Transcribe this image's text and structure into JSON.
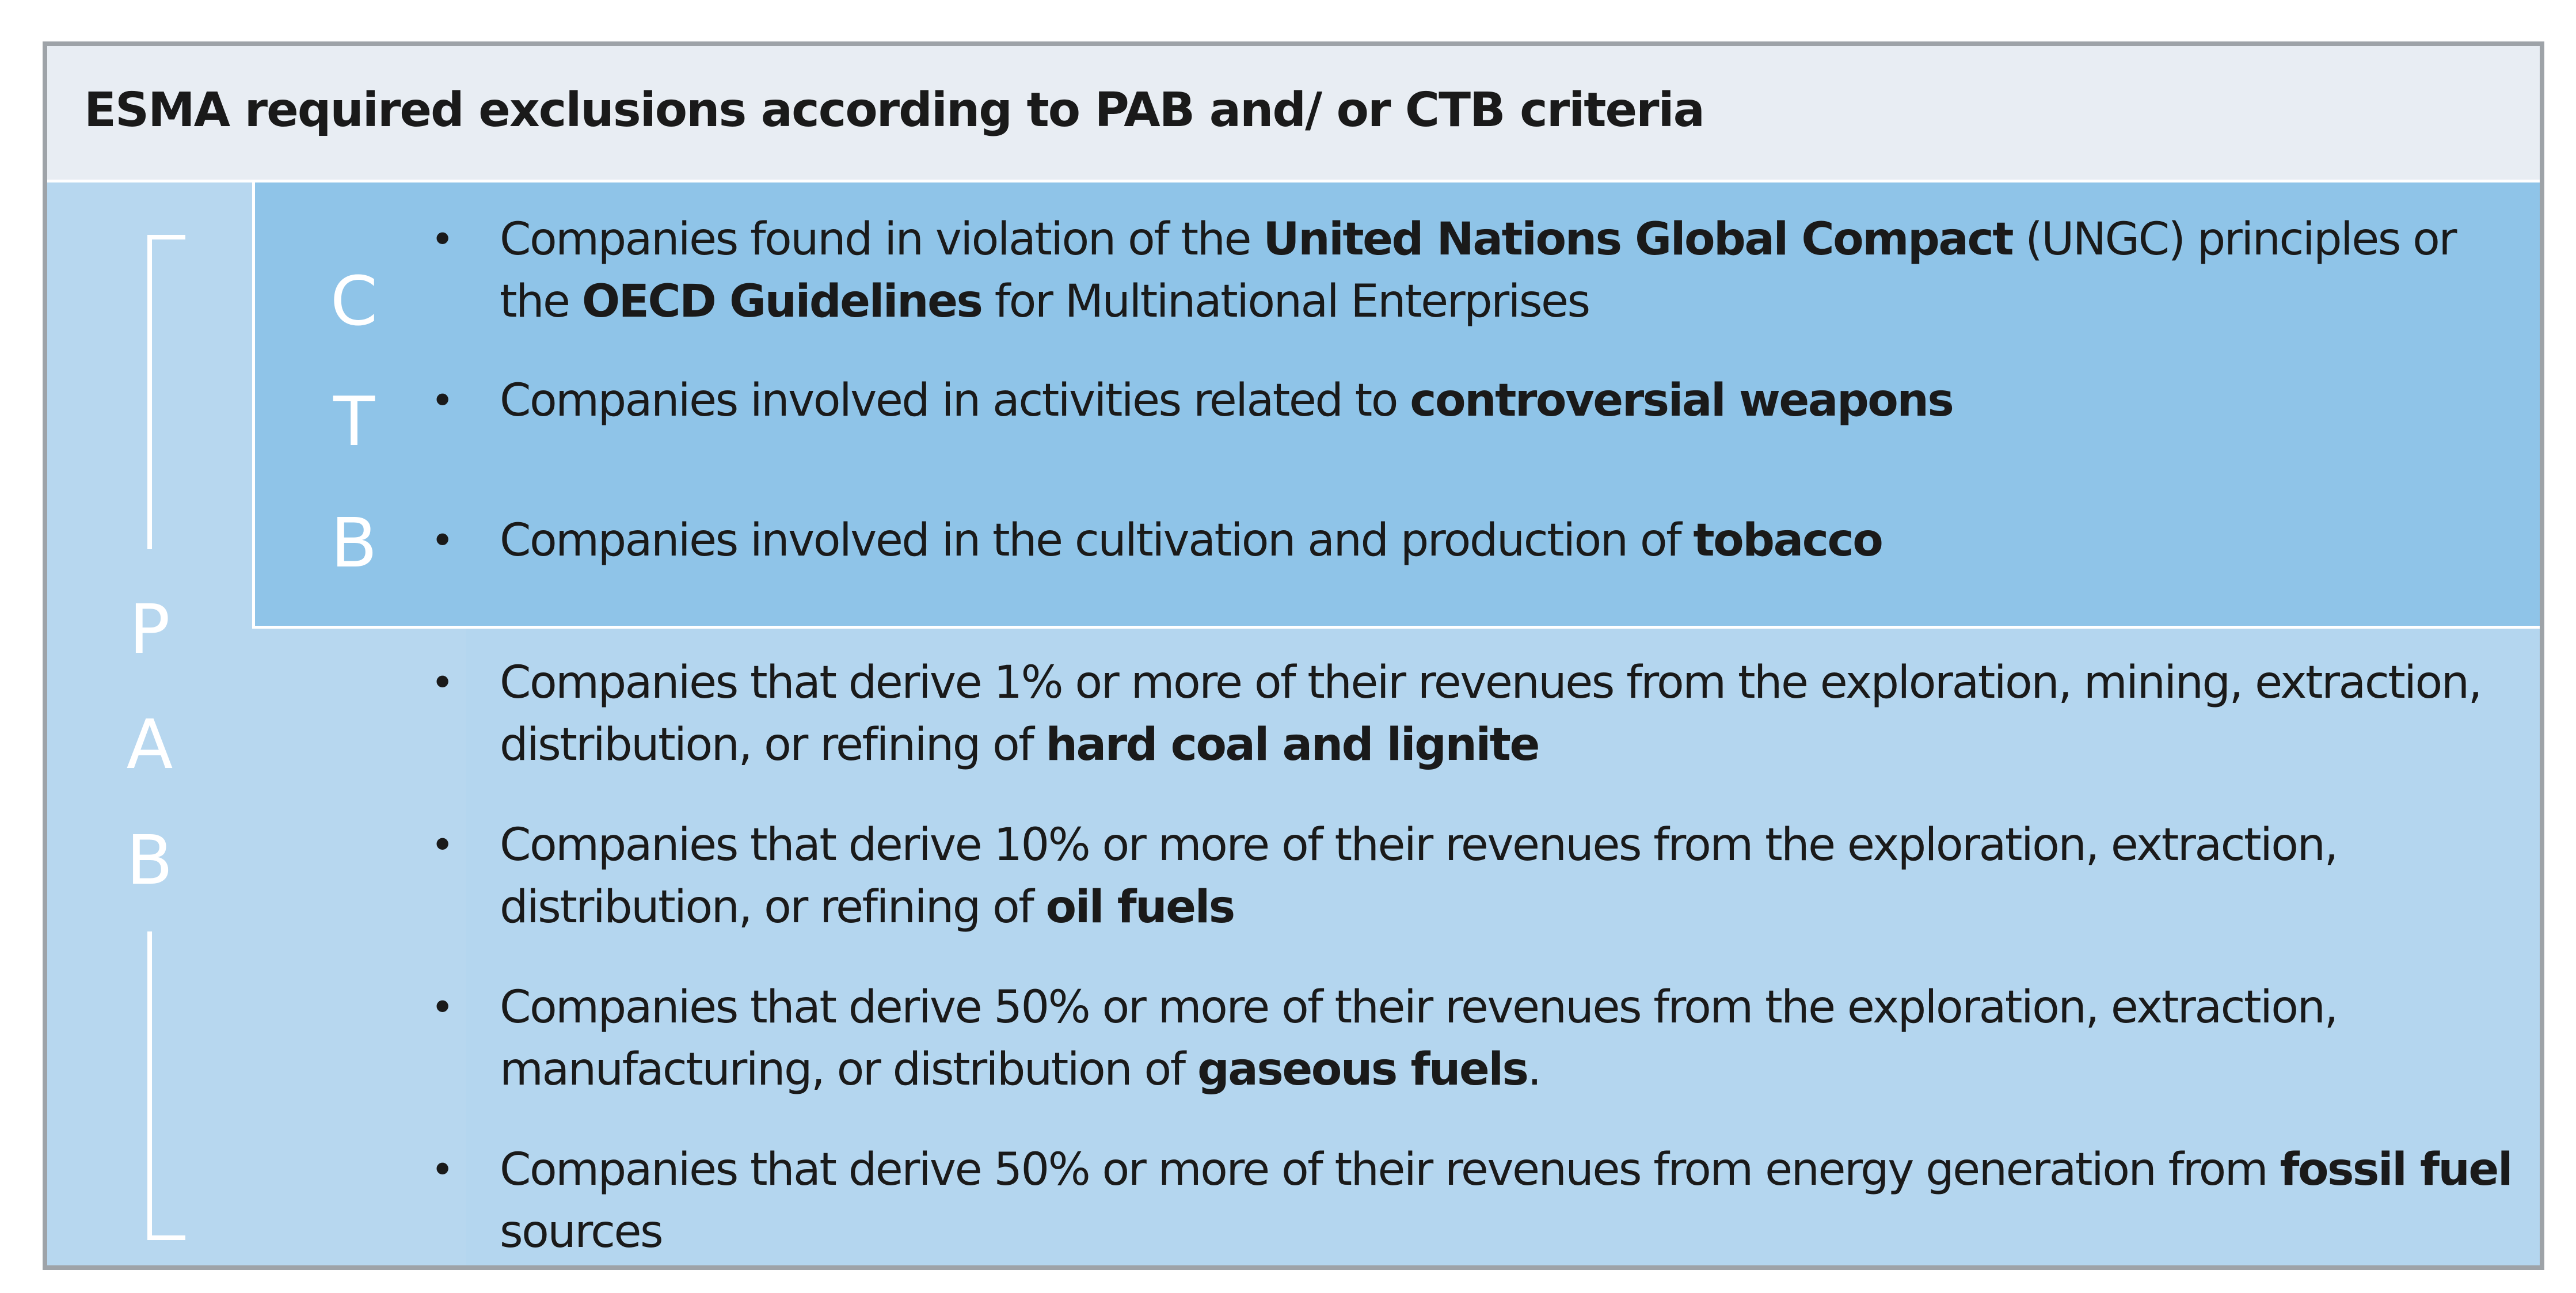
{
  "header": {
    "title": "ESMA required exclusions according to PAB and/ or CTB criteria"
  },
  "side_labels": {
    "ctb": [
      "C",
      "T",
      "B"
    ],
    "pab": [
      "P",
      "A",
      "B"
    ]
  },
  "ctb_items": [
    {
      "t1": "Companies found in violation of the ",
      "b1": "United Nations Global Compact",
      "t2": " (UNGC) principles or the ",
      "b2": "OECD Guidelines",
      "t3": " for Multinational Enterprises"
    },
    {
      "t1": "Companies involved in activities related to ",
      "b1": "controversial weapons"
    },
    {
      "t1": "Companies involved in the cultivation and production of ",
      "b1": "tobacco"
    }
  ],
  "pab_items": [
    {
      "t1": "Companies that derive 1% or more of their revenues from the exploration, mining, extraction, distribution, or refining of ",
      "b1": "hard coal and lignite"
    },
    {
      "t1": "Companies that derive 10% or more of their revenues from the exploration, extraction, distribution, or refining of ",
      "b1": "oil fuels"
    },
    {
      "t1": "Companies that derive 50% or more of their revenues from the exploration, extraction, manufacturing, or distribution of ",
      "b1": "gaseous fuels",
      "t2": "."
    },
    {
      "t1": "Companies that derive 50% or more of their revenues from energy generation from ",
      "b1": "fossil fuel",
      "t2": " sources"
    }
  ],
  "colors": {
    "header_bg": "#e8edf3",
    "pab_bg": "#b7d7ef",
    "ctb_bg": "#8fc4e8",
    "border": "#9ea3a8",
    "text": "#1a1a1a",
    "label": "#ffffff"
  }
}
